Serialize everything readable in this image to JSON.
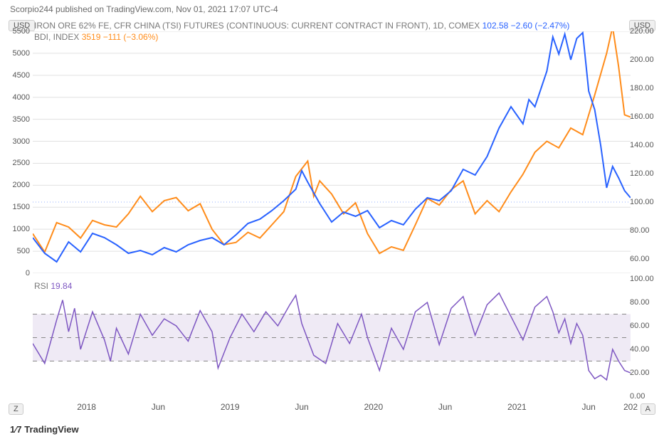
{
  "header": {
    "text": "Scorpio244 published on TradingView.com, Nov 01, 2021 17:07 UTC-4"
  },
  "badges": {
    "usd": "USD",
    "z": "Z",
    "a": "A"
  },
  "legend_main": {
    "title": "IRON ORE 62% FE, CFR CHINA (TSI) FUTURES (CONTINUOUS: CURRENT CONTRACT IN FRONT), 1D, COMEX",
    "last": "102.58",
    "change": "−2.60",
    "change_pct": "(−2.47%)"
  },
  "legend_bdi": {
    "title": "BDI, INDEX",
    "last": "3519",
    "change": "−111",
    "change_pct": "(−3.06%)"
  },
  "legend_rsi": {
    "title": "RSI",
    "value": "19.84"
  },
  "logo": {
    "icon": "1⁄7",
    "text": "TradingView"
  },
  "colors": {
    "series_blue": "#2962ff",
    "series_orange": "#ff8c1a",
    "series_purple": "#7e57c2",
    "grid": "#e0e0e0",
    "dashed_ref": "#9aa0c7",
    "rsi_band": "#efeaf5",
    "text": "#555555",
    "bg": "#ffffff"
  },
  "main": {
    "type": "line-dual-axis",
    "xlim": [
      0,
      100
    ],
    "left_axis": {
      "label": "USD",
      "min": 0,
      "max": 5500,
      "step": 500,
      "ticks": [
        0,
        500,
        1000,
        1500,
        2000,
        2500,
        3000,
        3500,
        4000,
        4500,
        5000,
        5500
      ]
    },
    "right_axis": {
      "label": "USD",
      "min": 50,
      "max": 220,
      "step": 20,
      "ticks": [
        60,
        80,
        100,
        120,
        140,
        160,
        180,
        200,
        220
      ]
    },
    "ref_line_right": 100,
    "x_ticks": [
      {
        "x": 9,
        "label": "2018"
      },
      {
        "x": 21,
        "label": "Jun"
      },
      {
        "x": 33,
        "label": "2019"
      },
      {
        "x": 45,
        "label": "Jun"
      },
      {
        "x": 57,
        "label": "2020"
      },
      {
        "x": 69,
        "label": "Jun"
      },
      {
        "x": 81,
        "label": "2021"
      },
      {
        "x": 93,
        "label": "Jun"
      },
      {
        "x": 100,
        "label": "202"
      }
    ],
    "series_bdi_left": [
      {
        "x": 0,
        "y": 900
      },
      {
        "x": 2,
        "y": 480
      },
      {
        "x": 4,
        "y": 1150
      },
      {
        "x": 6,
        "y": 1050
      },
      {
        "x": 8,
        "y": 800
      },
      {
        "x": 10,
        "y": 1200
      },
      {
        "x": 12,
        "y": 1100
      },
      {
        "x": 14,
        "y": 1050
      },
      {
        "x": 16,
        "y": 1350
      },
      {
        "x": 18,
        "y": 1750
      },
      {
        "x": 20,
        "y": 1400
      },
      {
        "x": 22,
        "y": 1650
      },
      {
        "x": 24,
        "y": 1720
      },
      {
        "x": 26,
        "y": 1420
      },
      {
        "x": 28,
        "y": 1580
      },
      {
        "x": 30,
        "y": 1000
      },
      {
        "x": 32,
        "y": 650
      },
      {
        "x": 34,
        "y": 700
      },
      {
        "x": 36,
        "y": 930
      },
      {
        "x": 38,
        "y": 800
      },
      {
        "x": 40,
        "y": 1100
      },
      {
        "x": 42,
        "y": 1400
      },
      {
        "x": 44,
        "y": 2200
      },
      {
        "x": 46,
        "y": 2550
      },
      {
        "x": 47,
        "y": 1750
      },
      {
        "x": 48,
        "y": 2100
      },
      {
        "x": 50,
        "y": 1800
      },
      {
        "x": 52,
        "y": 1350
      },
      {
        "x": 54,
        "y": 1600
      },
      {
        "x": 56,
        "y": 900
      },
      {
        "x": 58,
        "y": 450
      },
      {
        "x": 60,
        "y": 600
      },
      {
        "x": 62,
        "y": 520
      },
      {
        "x": 64,
        "y": 1100
      },
      {
        "x": 66,
        "y": 1700
      },
      {
        "x": 68,
        "y": 1550
      },
      {
        "x": 70,
        "y": 1900
      },
      {
        "x": 72,
        "y": 2100
      },
      {
        "x": 74,
        "y": 1350
      },
      {
        "x": 76,
        "y": 1650
      },
      {
        "x": 78,
        "y": 1400
      },
      {
        "x": 80,
        "y": 1850
      },
      {
        "x": 82,
        "y": 2250
      },
      {
        "x": 84,
        "y": 2750
      },
      {
        "x": 86,
        "y": 3000
      },
      {
        "x": 88,
        "y": 2850
      },
      {
        "x": 90,
        "y": 3300
      },
      {
        "x": 92,
        "y": 3150
      },
      {
        "x": 94,
        "y": 4050
      },
      {
        "x": 96,
        "y": 5000
      },
      {
        "x": 97,
        "y": 5600
      },
      {
        "x": 98,
        "y": 4700
      },
      {
        "x": 99,
        "y": 3600
      },
      {
        "x": 100,
        "y": 3550
      }
    ],
    "series_iron_right": [
      {
        "x": 0,
        "y": 75
      },
      {
        "x": 2,
        "y": 64
      },
      {
        "x": 4,
        "y": 58
      },
      {
        "x": 6,
        "y": 72
      },
      {
        "x": 8,
        "y": 65
      },
      {
        "x": 10,
        "y": 78
      },
      {
        "x": 12,
        "y": 75
      },
      {
        "x": 14,
        "y": 70
      },
      {
        "x": 16,
        "y": 64
      },
      {
        "x": 18,
        "y": 66
      },
      {
        "x": 20,
        "y": 63
      },
      {
        "x": 22,
        "y": 68
      },
      {
        "x": 24,
        "y": 65
      },
      {
        "x": 26,
        "y": 70
      },
      {
        "x": 28,
        "y": 73
      },
      {
        "x": 30,
        "y": 75
      },
      {
        "x": 32,
        "y": 70
      },
      {
        "x": 34,
        "y": 77
      },
      {
        "x": 36,
        "y": 85
      },
      {
        "x": 38,
        "y": 88
      },
      {
        "x": 40,
        "y": 94
      },
      {
        "x": 42,
        "y": 101
      },
      {
        "x": 44,
        "y": 109
      },
      {
        "x": 45,
        "y": 122
      },
      {
        "x": 46,
        "y": 114
      },
      {
        "x": 48,
        "y": 99
      },
      {
        "x": 50,
        "y": 86
      },
      {
        "x": 52,
        "y": 93
      },
      {
        "x": 54,
        "y": 90
      },
      {
        "x": 56,
        "y": 94
      },
      {
        "x": 58,
        "y": 82
      },
      {
        "x": 60,
        "y": 87
      },
      {
        "x": 62,
        "y": 84
      },
      {
        "x": 64,
        "y": 95
      },
      {
        "x": 66,
        "y": 103
      },
      {
        "x": 68,
        "y": 101
      },
      {
        "x": 70,
        "y": 108
      },
      {
        "x": 72,
        "y": 123
      },
      {
        "x": 74,
        "y": 119
      },
      {
        "x": 76,
        "y": 132
      },
      {
        "x": 78,
        "y": 152
      },
      {
        "x": 80,
        "y": 167
      },
      {
        "x": 82,
        "y": 155
      },
      {
        "x": 83,
        "y": 172
      },
      {
        "x": 84,
        "y": 167
      },
      {
        "x": 86,
        "y": 192
      },
      {
        "x": 87,
        "y": 216
      },
      {
        "x": 88,
        "y": 204
      },
      {
        "x": 89,
        "y": 218
      },
      {
        "x": 90,
        "y": 200
      },
      {
        "x": 91,
        "y": 215
      },
      {
        "x": 92,
        "y": 219
      },
      {
        "x": 93,
        "y": 178
      },
      {
        "x": 94,
        "y": 165
      },
      {
        "x": 95,
        "y": 140
      },
      {
        "x": 96,
        "y": 110
      },
      {
        "x": 97,
        "y": 125
      },
      {
        "x": 98,
        "y": 117
      },
      {
        "x": 99,
        "y": 108
      },
      {
        "x": 100,
        "y": 103
      }
    ]
  },
  "rsi": {
    "type": "line",
    "min": 0,
    "max": 100,
    "ticks": [
      0,
      20,
      40,
      60,
      80,
      100
    ],
    "upper_band": 70,
    "lower_band": 30,
    "mid": 50,
    "line_width": 1.5,
    "series": [
      {
        "x": 0,
        "y": 45
      },
      {
        "x": 2,
        "y": 28
      },
      {
        "x": 4,
        "y": 65
      },
      {
        "x": 5,
        "y": 82
      },
      {
        "x": 6,
        "y": 55
      },
      {
        "x": 7,
        "y": 75
      },
      {
        "x": 8,
        "y": 40
      },
      {
        "x": 10,
        "y": 72
      },
      {
        "x": 12,
        "y": 48
      },
      {
        "x": 13,
        "y": 30
      },
      {
        "x": 14,
        "y": 58
      },
      {
        "x": 16,
        "y": 36
      },
      {
        "x": 18,
        "y": 70
      },
      {
        "x": 20,
        "y": 52
      },
      {
        "x": 22,
        "y": 66
      },
      {
        "x": 24,
        "y": 60
      },
      {
        "x": 26,
        "y": 47
      },
      {
        "x": 28,
        "y": 73
      },
      {
        "x": 30,
        "y": 55
      },
      {
        "x": 31,
        "y": 24
      },
      {
        "x": 33,
        "y": 50
      },
      {
        "x": 35,
        "y": 70
      },
      {
        "x": 37,
        "y": 55
      },
      {
        "x": 39,
        "y": 72
      },
      {
        "x": 41,
        "y": 60
      },
      {
        "x": 43,
        "y": 78
      },
      {
        "x": 44,
        "y": 86
      },
      {
        "x": 45,
        "y": 62
      },
      {
        "x": 47,
        "y": 35
      },
      {
        "x": 49,
        "y": 28
      },
      {
        "x": 51,
        "y": 62
      },
      {
        "x": 53,
        "y": 45
      },
      {
        "x": 55,
        "y": 70
      },
      {
        "x": 56,
        "y": 50
      },
      {
        "x": 58,
        "y": 22
      },
      {
        "x": 60,
        "y": 58
      },
      {
        "x": 62,
        "y": 40
      },
      {
        "x": 64,
        "y": 72
      },
      {
        "x": 66,
        "y": 80
      },
      {
        "x": 68,
        "y": 44
      },
      {
        "x": 70,
        "y": 75
      },
      {
        "x": 72,
        "y": 85
      },
      {
        "x": 74,
        "y": 52
      },
      {
        "x": 76,
        "y": 78
      },
      {
        "x": 78,
        "y": 88
      },
      {
        "x": 80,
        "y": 68
      },
      {
        "x": 82,
        "y": 48
      },
      {
        "x": 84,
        "y": 76
      },
      {
        "x": 86,
        "y": 85
      },
      {
        "x": 87,
        "y": 72
      },
      {
        "x": 88,
        "y": 54
      },
      {
        "x": 89,
        "y": 66
      },
      {
        "x": 90,
        "y": 45
      },
      {
        "x": 91,
        "y": 62
      },
      {
        "x": 92,
        "y": 52
      },
      {
        "x": 93,
        "y": 22
      },
      {
        "x": 94,
        "y": 15
      },
      {
        "x": 95,
        "y": 18
      },
      {
        "x": 96,
        "y": 14
      },
      {
        "x": 97,
        "y": 40
      },
      {
        "x": 98,
        "y": 30
      },
      {
        "x": 99,
        "y": 22
      },
      {
        "x": 100,
        "y": 20
      }
    ]
  }
}
